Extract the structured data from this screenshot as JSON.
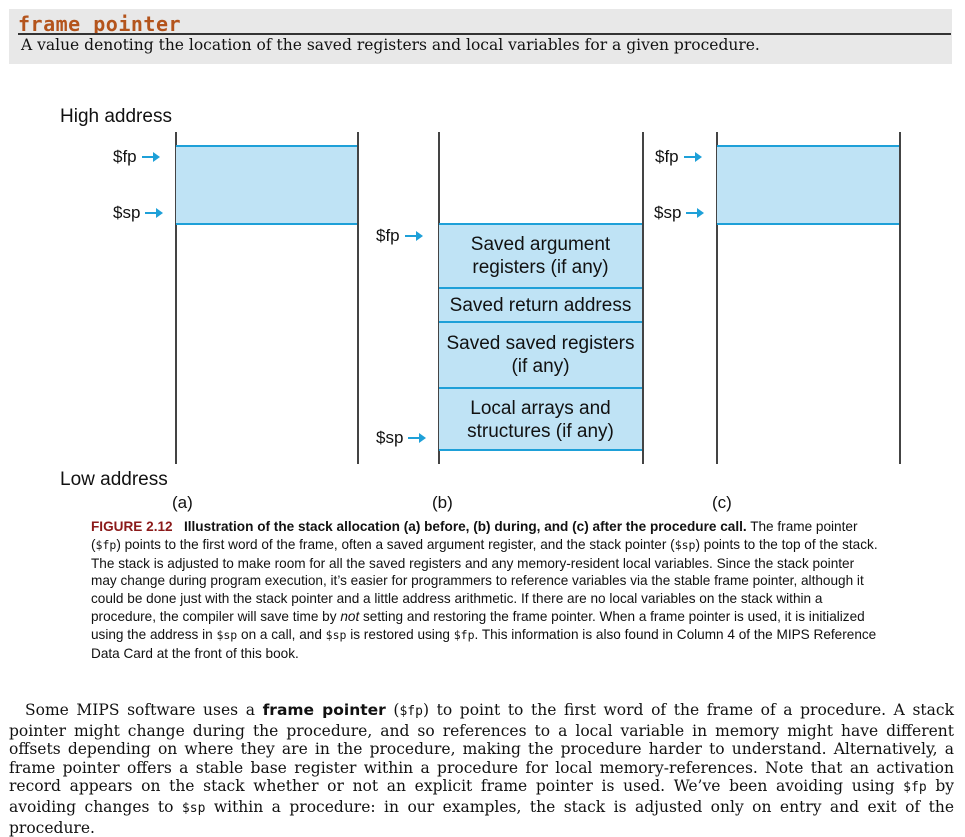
{
  "definition": {
    "term": "frame pointer",
    "text": "A value denoting the location of the saved registers and local variables for a given procedure."
  },
  "figure": {
    "high_address": "High address",
    "low_address": "Low address",
    "panel_a": {
      "label": "(a)",
      "fp": "$fp",
      "sp": "$sp"
    },
    "panel_b": {
      "label": "(b)",
      "fp": "$fp",
      "sp": "$sp",
      "segments": [
        "Saved argument registers (if any)",
        "Saved return address",
        "Saved saved registers (if any)",
        "Local arrays and structures (if any)"
      ]
    },
    "panel_c": {
      "label": "(c)",
      "fp": "$fp",
      "sp": "$sp"
    },
    "pointer_color": "#1ea0d8",
    "block_color": "#bfe3f5"
  },
  "caption": {
    "number": "FIGURE 2.12",
    "title": "Illustration of the stack allocation (a) before, (b) during, and (c) after the procedure call.",
    "s1": "The frame pointer (",
    "s1_code": "$fp",
    "s2": ") points to the first word of the frame, often a saved argument register, and the stack pointer (",
    "s2_code": "$sp",
    "s3": ") points to the top of the stack. The stack is adjusted to make room for all the saved registers and any memory-resident local variables. Since the stack pointer may change during program execution, it’s easier for programmers to reference variables via the stable frame pointer, although it could be done just with the stack pointer and a little address arithmetic. If there are no local variables on the stack within a procedure, the compiler will save time by ",
    "s3_em": "not",
    "s4": " setting and restoring the frame pointer. When a frame pointer is used, it is initialized using the address in ",
    "s4_code": "$sp",
    "s5": " on a call, and ",
    "s5_code": "$sp",
    "s6": " is restored using ",
    "s6_code": "$fp",
    "s7": ". This information is also found in Column 4 of the MIPS Reference Data Card at the front of this book."
  },
  "body": {
    "p1": "Some MIPS software uses a ",
    "p1_bold": "frame pointer",
    "p2": " (",
    "p2_code": "$fp",
    "p3": ") to point to the first word of the frame of a procedure. A stack pointer might change during the procedure, and so references to a local variable in memory might have different offsets depending on where they are in the procedure, making the procedure harder to understand. Alternatively, a frame pointer offers a stable base register within a procedure for local memory-references. Note that an activation record appears on the stack whether or not an explicit frame pointer is used. We’ve been avoiding using ",
    "p3_code": "$fp",
    "p4": " by avoiding changes to ",
    "p4_code": "$sp",
    "p5": " within a procedure: in our examples, the stack is adjusted only on entry and exit of the procedure."
  }
}
